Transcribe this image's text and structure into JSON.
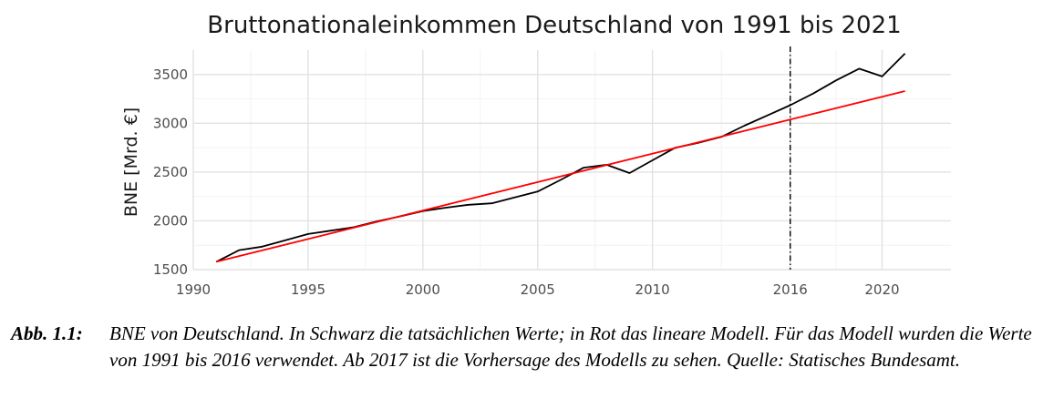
{
  "chart_data": {
    "type": "line",
    "title": "Bruttonationaleinkommen Deutschland von 1991 bis 2021",
    "xlabel": "",
    "ylabel": "BNE [Mrd. €]",
    "xlim": [
      1990,
      2023
    ],
    "ylim": [
      1500,
      3750
    ],
    "x_ticks": [
      1990,
      1995,
      2000,
      2005,
      2010,
      2016,
      2020
    ],
    "y_ticks": [
      1500,
      2000,
      2500,
      3000,
      3500
    ],
    "grid": true,
    "series": [
      {
        "color": "#000000",
        "points": [
          [
            1991,
            1580
          ],
          [
            1992,
            1700
          ],
          [
            1993,
            1735
          ],
          [
            1994,
            1800
          ],
          [
            1995,
            1865
          ],
          [
            1996,
            1900
          ],
          [
            1997,
            1935
          ],
          [
            1998,
            1995
          ],
          [
            1999,
            2045
          ],
          [
            2000,
            2100
          ],
          [
            2001,
            2135
          ],
          [
            2002,
            2165
          ],
          [
            2003,
            2180
          ],
          [
            2004,
            2240
          ],
          [
            2005,
            2300
          ],
          [
            2006,
            2420
          ],
          [
            2007,
            2545
          ],
          [
            2008,
            2575
          ],
          [
            2009,
            2490
          ],
          [
            2010,
            2620
          ],
          [
            2011,
            2750
          ],
          [
            2012,
            2800
          ],
          [
            2013,
            2860
          ],
          [
            2014,
            2975
          ],
          [
            2015,
            3080
          ],
          [
            2016,
            3185
          ],
          [
            2017,
            3305
          ],
          [
            2018,
            3440
          ],
          [
            2019,
            3560
          ],
          [
            2020,
            3480
          ],
          [
            2021,
            3715
          ]
        ]
      },
      {
        "color": "#ff0000",
        "points": [
          [
            1991,
            1580
          ],
          [
            2021,
            3330
          ]
        ]
      }
    ],
    "vline": {
      "x": 2016,
      "style": "dash-dot",
      "color": "#000000"
    }
  },
  "caption": {
    "label": "Abb. 1.1:",
    "text": "BNE von Deutschland. In Schwarz die tatsächlichen Werte; in Rot das lineare Modell. Für das Modell wurden die Werte von 1991 bis 2016 verwendet. Ab 2017 ist die Vorhersage des Modells zu sehen. Quelle: Statisches Bundesamt."
  }
}
